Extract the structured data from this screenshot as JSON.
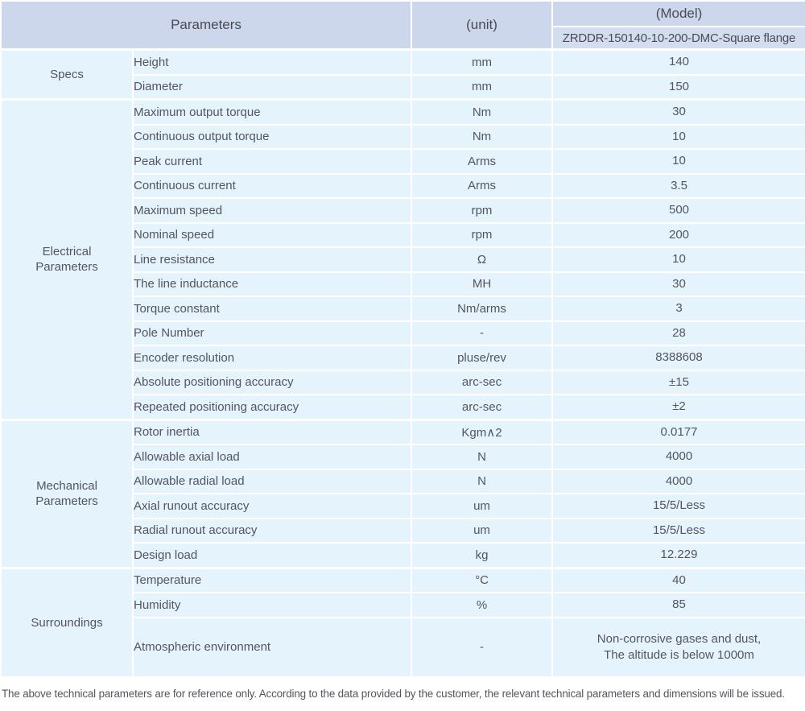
{
  "header": {
    "parameters_label": "Parameters",
    "unit_label": "(unit)",
    "model_label": "(Model)",
    "model_value": "ZRDDR-150140-10-200-DMC-Square flange"
  },
  "sections": [
    {
      "category": "Specs",
      "rows": [
        {
          "param": "Height",
          "unit": "mm",
          "value": "140"
        },
        {
          "param": "Diameter",
          "unit": "mm",
          "value": "150"
        }
      ]
    },
    {
      "category": "Electrical\nParameters",
      "rows": [
        {
          "param": "Maximum output torque",
          "unit": "Nm",
          "value": "30"
        },
        {
          "param": "Continuous output torque",
          "unit": "Nm",
          "value": "10"
        },
        {
          "param": "Peak current",
          "unit": "Arms",
          "value": "10"
        },
        {
          "param": "Continuous current",
          "unit": "Arms",
          "value": "3.5"
        },
        {
          "param": "Maximum speed",
          "unit": "rpm",
          "value": "500"
        },
        {
          "param": "Nominal speed",
          "unit": "rpm",
          "value": "200"
        },
        {
          "param": "Line resistance",
          "unit": "Ω",
          "value": "10"
        },
        {
          "param": "The line inductance",
          "unit": "MH",
          "value": "30"
        },
        {
          "param": "Torque constant",
          "unit": "Nm/arms",
          "value": "3"
        },
        {
          "param": "Pole Number",
          "unit": "-",
          "value": "28"
        },
        {
          "param": "Encoder resolution",
          "unit": "pluse/rev",
          "value": "8388608"
        },
        {
          "param": "Absolute positioning accuracy",
          "unit": "arc-sec",
          "value": "±15"
        },
        {
          "param": "Repeated positioning accuracy",
          "unit": "arc-sec",
          "value": "±2"
        }
      ]
    },
    {
      "category": "Mechanical\nParameters",
      "rows": [
        {
          "param": "Rotor inertia",
          "unit": "Kgm∧2",
          "value": "0.0177"
        },
        {
          "param": "Allowable axial load",
          "unit": "N",
          "value": "4000"
        },
        {
          "param": "Allowable radial load",
          "unit": "N",
          "value": "4000"
        },
        {
          "param": "Axial runout accuracy",
          "unit": "um",
          "value": "15/5/Less"
        },
        {
          "param": "Radial runout accuracy",
          "unit": "um",
          "value": "15/5/Less"
        },
        {
          "param": "Design load",
          "unit": "kg",
          "value": "12.229"
        }
      ]
    },
    {
      "category": "Surroundings",
      "rows": [
        {
          "param": "Temperature",
          "unit": "°C",
          "value": "40"
        },
        {
          "param": "Humidity",
          "unit": "%",
          "value": "85"
        },
        {
          "param": "Atmospheric environment",
          "unit": "-",
          "value": "Non-corrosive gases and dust,\nThe altitude is below 1000m"
        }
      ]
    }
  ],
  "footer": {
    "note": "The above technical parameters are for reference only. According to the data provided by the customer, the relevant technical parameters and dimensions will be issued."
  },
  "colors": {
    "header_bg": "#ccd7ec",
    "model_row_bg": "#d2ddf0",
    "body_row_bg": "#e4f3fc",
    "text": "#54555e"
  }
}
